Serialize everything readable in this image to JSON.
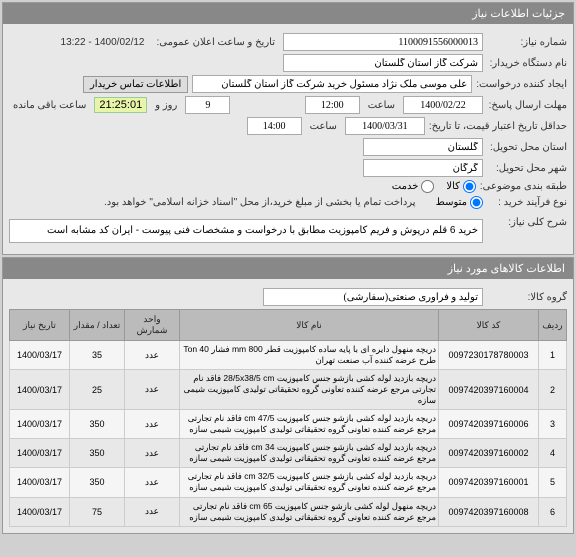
{
  "header": {
    "title": "جزئیات اطلاعات نیاز"
  },
  "form": {
    "need_no_label": "شماره نیاز:",
    "need_no": "1100091556000013",
    "announce_label": "تاریخ و ساعت اعلان عمومی:",
    "announce_value": "1400/02/12 - 13:22",
    "buyer_org_label": "نام دستگاه خریدار:",
    "buyer_org": "شرکت گاز استان گلستان",
    "creator_label": "ایجاد کننده درخواست:",
    "creator": "علی موسی ملک نژاد مسئول خرید شرکت گاز استان گلستان",
    "contact_btn": "اطلاعات تماس خریدار",
    "deadline_label": "مهلت ارسال پاسخ:",
    "deadline_date": "1400/02/22",
    "hour_label": "ساعت",
    "deadline_time": "12:00",
    "days_remaining": "9",
    "and_label": "روز و",
    "time_remaining": "21:25:01",
    "remaining_label": "ساعت باقی مانده",
    "validity_label": "حداقل تاریخ اعتبار قیمت، تا تاریخ:",
    "validity_date": "1400/03/31",
    "validity_time": "14:00",
    "delivery_prov_label": "استان محل تحویل:",
    "delivery_prov": "گلستان",
    "delivery_city_label": "شهر محل تحویل:",
    "delivery_city": "گرگان",
    "classify_label": "طبقه بندی موضوعی:",
    "classify_goods": "کالا",
    "classify_service": "خدمت",
    "buy_type_label": "نوع فرآیند خرید :",
    "buy_type_mid": "متوسط",
    "buy_type_note": "پرداخت تمام یا بخشی از مبلغ خرید،از محل \"اسناد خزانه اسلامی\" خواهد بود.",
    "general_desc_label": "شرح کلی نیاز:",
    "general_desc": "خرید 6  قلم درپوش و فریم کامپوزیت مطابق با درخواست و مشخصات فنی پیوست - ایران کد مشابه است"
  },
  "items_header": {
    "title": "اطلاعات کالاهای مورد نیاز"
  },
  "group": {
    "label": "گروه کالا:",
    "value": "تولید و فرآوری صنعتی(سفارشی)"
  },
  "table": {
    "columns": [
      "ردیف",
      "کد کالا",
      "نام کالا",
      "واحد شمارش",
      "تعداد / مقدار",
      "تاریخ نیاز"
    ],
    "rows": [
      {
        "n": "1",
        "code": "0097230178780003",
        "name": "دریچه منهول دایره ای با پایه ساده کامپوزیت قطر mm 800 فشار Ton 40 طرح عرضه کننده آب صنعت تهران",
        "unit": "عدد",
        "qty": "35",
        "date": "1400/03/17"
      },
      {
        "n": "2",
        "code": "0097420397160004",
        "name": "دریچه بازدید لوله کشی بازشو جنس کامپوزیت 28/5x38/5 cm فاقد نام تجارتی مرجع عرضه کننده تعاونی گروه تحقیقاتی تولیدی کامپوزیت شیمی سازه",
        "unit": "عدد",
        "qty": "25",
        "date": "1400/03/17"
      },
      {
        "n": "3",
        "code": "0097420397160006",
        "name": "دریچه بازدید لوله کشی بازشو جنس کامپوزیت cm 47/5 فاقد نام تجارتی مرجع عرضه کننده تعاونی گروه تحقیقاتی تولیدی کامپوزیت شیمی سازه",
        "unit": "عدد",
        "qty": "350",
        "date": "1400/03/17"
      },
      {
        "n": "4",
        "code": "0097420397160002",
        "name": "دریچه بازدید لوله کشی بازشو جنس کامپوزیت cm 34 فاقد نام تجارتی مرجع عرضه کننده تعاونی گروه تحقیقاتی تولیدی کامپوزیت شیمی سازه",
        "unit": "عدد",
        "qty": "350",
        "date": "1400/03/17"
      },
      {
        "n": "5",
        "code": "0097420397160001",
        "name": "دریچه بازدید لوله کشی بازشو جنس کامپوزیت cm 32/5 فاقد نام تجارتی مرجع عرضه کننده تعاونی گروه تحقیقاتی تولیدی کامپوزیت شیمی سازه",
        "unit": "عدد",
        "qty": "350",
        "date": "1400/03/17"
      },
      {
        "n": "6",
        "code": "0097420397160008",
        "name": "دریچه منهول لوله کشی بازشو جنس کامپوزیت cm 65 فاقد نام تجارتی مرجع عرضه کننده تعاونی گروه تحقیقاتی تولیدی کامپوزیت شیمی سازه",
        "unit": "عدد",
        "qty": "75",
        "date": "1400/03/17"
      }
    ]
  }
}
